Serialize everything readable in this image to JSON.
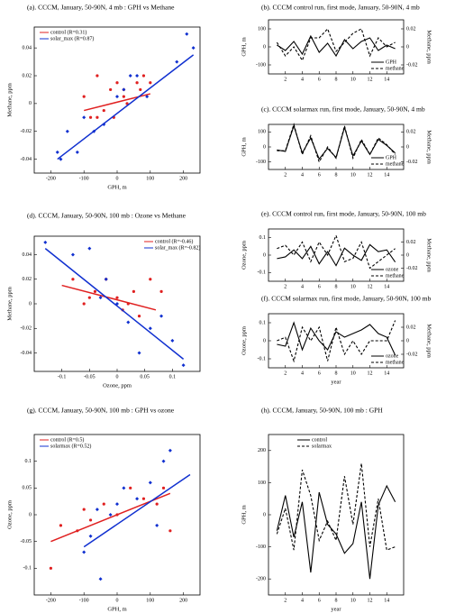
{
  "chart_data": [
    {
      "type": "scatter",
      "title": "(a). CCCM, January, 50-90N, 4 mb : GPH vs Methane",
      "xlabel": "GPH, m",
      "ylabel": "Methane, ppm",
      "xlim": [
        -250,
        250
      ],
      "xticks": [
        -200,
        -100,
        0,
        100,
        200
      ],
      "ylim": [
        -0.05,
        0.055
      ],
      "yticks": [
        -0.04,
        -0.02,
        0,
        0.02,
        0.04
      ],
      "legend": "upper left",
      "series": [
        {
          "name": "control (R=0.31)",
          "color": "#e02020",
          "marker": "circle",
          "x": [
            -60,
            -40,
            -20,
            0,
            -100,
            -80,
            20,
            60,
            70,
            100,
            -10,
            30,
            -60,
            20,
            80
          ],
          "values": [
            0.02,
            -0.005,
            0.01,
            0.015,
            0.005,
            -0.01,
            0.01,
            0.015,
            0.01,
            0.015,
            -0.01,
            0,
            -0.01,
            0.005,
            0.02
          ],
          "fit": {
            "x": [
              -100,
              100
            ],
            "y": [
              -0.005,
              0.007
            ]
          }
        },
        {
          "name": "solar_max (R=0.87)",
          "color": "#1030d0",
          "marker": "diamond",
          "x": [
            -180,
            -170,
            -150,
            -120,
            -100,
            -70,
            -40,
            0,
            20,
            60,
            90,
            180,
            210,
            230,
            40
          ],
          "values": [
            -0.035,
            -0.04,
            -0.02,
            -0.035,
            -0.01,
            -0.02,
            -0.015,
            0.005,
            0.01,
            0.02,
            0.005,
            0.03,
            0.05,
            0.04,
            0.02
          ],
          "fit": {
            "x": [
              -180,
              230
            ],
            "y": [
              -0.04,
              0.035
            ]
          }
        }
      ]
    },
    {
      "type": "line",
      "title": "(b). CCCM control run, first mode, January, 50-90N, 4 mb",
      "ylabel": "GPH, m",
      "y2label": "Methane, ppm",
      "x": [
        1,
        2,
        3,
        4,
        5,
        6,
        7,
        8,
        9,
        10,
        11,
        12,
        13,
        14,
        15
      ],
      "xlim": [
        0,
        16
      ],
      "xticks": [
        2,
        4,
        6,
        8,
        10,
        12,
        14
      ],
      "ylim": [
        -150,
        150
      ],
      "yticks": [
        -100,
        0,
        100
      ],
      "y2lim": [
        -0.03,
        0.03
      ],
      "y2ticks": [
        -0.02,
        0,
        0.02
      ],
      "legend": "lower right",
      "series": [
        {
          "name": "GPH",
          "color": "#000000",
          "linestyle": "solid",
          "values": [
            10,
            -20,
            30,
            -40,
            60,
            -30,
            20,
            -50,
            40,
            -10,
            30,
            50,
            -20,
            10,
            -10
          ]
        },
        {
          "name": "methane",
          "color": "#000000",
          "linestyle": "dashed",
          "axis": "y2",
          "values": [
            0.005,
            -0.01,
            0,
            -0.015,
            0.01,
            0.01,
            0.02,
            -0.005,
            0.005,
            0.015,
            0.02,
            -0.01,
            0.01,
            0,
            0.005
          ]
        }
      ]
    },
    {
      "type": "line",
      "title": "(c). CCCM solarmax run, first mode, January, 50-90N, 4 mb",
      "ylabel": "GPH, m",
      "y2label": "Methane, ppm",
      "x": [
        1,
        2,
        3,
        4,
        5,
        6,
        7,
        8,
        9,
        10,
        11,
        12,
        13,
        14,
        15
      ],
      "xlim": [
        0,
        16
      ],
      "xticks": [
        2,
        4,
        6,
        8,
        10,
        12,
        14
      ],
      "ylim": [
        -150,
        150
      ],
      "yticks": [
        -100,
        0,
        100
      ],
      "y2lim": [
        -0.03,
        0.03
      ],
      "y2ticks": [
        -0.02,
        0,
        0.02
      ],
      "legend": "lower right",
      "series": [
        {
          "name": "GPH",
          "color": "#000000",
          "linestyle": "solid",
          "values": [
            -20,
            -30,
            140,
            -40,
            60,
            -80,
            -10,
            -70,
            130,
            -60,
            40,
            -50,
            50,
            10,
            -40
          ]
        },
        {
          "name": "methane",
          "color": "#000000",
          "linestyle": "dashed",
          "axis": "y2",
          "values": [
            -0.005,
            -0.005,
            0.03,
            -0.01,
            0.015,
            -0.02,
            0,
            -0.015,
            0.028,
            -0.015,
            0.01,
            -0.01,
            0.012,
            0.003,
            -0.01
          ]
        }
      ]
    },
    {
      "type": "scatter",
      "title": "(d). CCCM, January, 50-90N, 100 mb : Ozone vs Methane",
      "xlabel": "Ozone, ppm",
      "ylabel": "Methane, ppm",
      "xlim": [
        -0.15,
        0.15
      ],
      "xticks": [
        -0.1,
        -0.05,
        0,
        0.05,
        0.1
      ],
      "ylim": [
        -0.055,
        0.055
      ],
      "yticks": [
        -0.04,
        -0.02,
        0,
        0.02,
        0.04
      ],
      "legend": "upper right",
      "series": [
        {
          "name": "control (R=-0.46)",
          "color": "#e02020",
          "marker": "circle",
          "x": [
            -0.08,
            -0.06,
            -0.04,
            -0.02,
            0,
            0.02,
            0.04,
            0.06,
            0.08,
            -0.05,
            0.01,
            0.03
          ],
          "values": [
            0.02,
            0,
            0.01,
            0.02,
            0.005,
            0,
            -0.01,
            0.02,
            0.01,
            0.005,
            -0.005,
            0.01
          ],
          "fit": {
            "x": [
              -0.1,
              0.07
            ],
            "y": [
              0.015,
              -0.005
            ]
          }
        },
        {
          "name": "solar_max (R=-0.82)",
          "color": "#1030d0",
          "marker": "diamond",
          "x": [
            -0.13,
            -0.08,
            -0.05,
            -0.02,
            0,
            0.02,
            0.04,
            0.06,
            0.1,
            0.12,
            0.08,
            -0.03
          ],
          "values": [
            0.05,
            0.04,
            0.045,
            0.02,
            0,
            -0.015,
            -0.04,
            -0.02,
            -0.03,
            -0.05,
            -0.01,
            0.005
          ],
          "fit": {
            "x": [
              -0.13,
              0.12
            ],
            "y": [
              0.045,
              -0.045
            ]
          }
        }
      ]
    },
    {
      "type": "line",
      "title": "(e). CCCM control run, first mode, January, 50-90N, 100 mb",
      "ylabel": "Ozone, ppm",
      "y2label": "Methane, ppm",
      "x": [
        1,
        2,
        3,
        4,
        5,
        6,
        7,
        8,
        9,
        10,
        11,
        12,
        13,
        14,
        15
      ],
      "xlim": [
        0,
        16
      ],
      "xticks": [
        2,
        4,
        6,
        8,
        10,
        12,
        14
      ],
      "ylim": [
        -0.15,
        0.15
      ],
      "yticks": [
        -0.1,
        0,
        0.1
      ],
      "y2lim": [
        -0.04,
        0.04
      ],
      "y2ticks": [
        -0.02,
        0,
        0.02
      ],
      "legend": "lower right",
      "series": [
        {
          "name": "ozone",
          "color": "#000000",
          "linestyle": "solid",
          "values": [
            -0.02,
            -0.01,
            0.03,
            -0.02,
            0.05,
            -0.05,
            0.02,
            -0.06,
            0.04,
            0,
            -0.03,
            0.06,
            0.02,
            0.03,
            -0.04
          ]
        },
        {
          "name": "methane",
          "color": "#000000",
          "linestyle": "dashed",
          "axis": "y2",
          "values": [
            0.01,
            0.015,
            0,
            0.02,
            -0.01,
            0.02,
            0,
            0.03,
            -0.01,
            -0.005,
            0.02,
            -0.02,
            -0.01,
            0,
            0.01
          ]
        }
      ]
    },
    {
      "type": "line",
      "title": "(f). CCCM solarmax run, first mode, January, 50-90N, 100 mb",
      "xlabel": "year",
      "ylabel": "Ozone, ppm",
      "y2label": "Methane, ppm",
      "x": [
        1,
        2,
        3,
        4,
        5,
        6,
        7,
        8,
        9,
        10,
        11,
        12,
        13,
        14,
        15
      ],
      "xlim": [
        0,
        16
      ],
      "xticks": [
        2,
        4,
        6,
        8,
        10,
        12,
        14
      ],
      "ylim": [
        -0.15,
        0.15
      ],
      "yticks": [
        -0.1,
        0,
        0.1
      ],
      "y2lim": [
        -0.04,
        0.04
      ],
      "y2ticks": [
        -0.02,
        0,
        0.02
      ],
      "legend": "lower right",
      "series": [
        {
          "name": "ozone",
          "color": "#000000",
          "linestyle": "solid",
          "values": [
            -0.02,
            -0.03,
            0.1,
            -0.05,
            0.07,
            0,
            -0.05,
            0.05,
            0.02,
            0.04,
            0.06,
            0.09,
            0.04,
            0.02,
            -0.08
          ]
        },
        {
          "name": "methane",
          "color": "#000000",
          "linestyle": "dashed",
          "axis": "y2",
          "values": [
            0,
            0.005,
            -0.03,
            0.02,
            0,
            0.02,
            -0.03,
            0.02,
            -0.02,
            0,
            -0.02,
            0,
            0,
            0,
            0.03
          ]
        }
      ]
    },
    {
      "type": "scatter",
      "title": "(g). CCCM, January, 50-90N, 100 mb : GPH vs ozone",
      "xlabel": "GPH, m",
      "ylabel": "Ozone, ppm",
      "xlim": [
        -250,
        250
      ],
      "xticks": [
        -200,
        -100,
        0,
        100,
        200
      ],
      "ylim": [
        -0.15,
        0.15
      ],
      "yticks": [
        -0.1,
        -0.05,
        0,
        0.05,
        0.1
      ],
      "legend": "upper left",
      "series": [
        {
          "name": "control (R=0.5)",
          "color": "#e02020",
          "marker": "circle",
          "x": [
            -200,
            -170,
            -120,
            -80,
            -40,
            0,
            40,
            80,
            120,
            160,
            140,
            -100
          ],
          "values": [
            -0.1,
            -0.02,
            -0.03,
            -0.01,
            0.02,
            0,
            0.05,
            0.03,
            0.02,
            -0.03,
            0.05,
            0.01
          ],
          "fit": {
            "x": [
              -200,
              160
            ],
            "y": [
              -0.05,
              0.04
            ]
          }
        },
        {
          "name": "solarmax (R=0.52)",
          "color": "#1030d0",
          "marker": "diamond",
          "x": [
            -100,
            -80,
            -50,
            -20,
            0,
            20,
            60,
            100,
            140,
            160,
            120,
            -60
          ],
          "values": [
            -0.07,
            -0.04,
            -0.12,
            0,
            0.02,
            0.05,
            0.03,
            0.06,
            0.1,
            0.12,
            -0.02,
            0.01
          ],
          "fit": {
            "x": [
              -100,
              220
            ],
            "y": [
              -0.06,
              0.075
            ]
          }
        }
      ]
    },
    {
      "type": "line",
      "title": "(h). CCCM, January, 50-90N, 100 mb : GPH",
      "xlabel": "year",
      "ylabel": "GPH, m",
      "x": [
        1,
        2,
        3,
        4,
        5,
        6,
        7,
        8,
        9,
        10,
        11,
        12,
        13,
        14,
        15
      ],
      "xlim": [
        0,
        16
      ],
      "xticks": [
        2,
        4,
        6,
        8,
        10,
        12,
        14
      ],
      "ylim": [
        -250,
        250
      ],
      "yticks": [
        -200,
        -100,
        0,
        100,
        200
      ],
      "legend": "upper left",
      "series": [
        {
          "name": "control",
          "color": "#000000",
          "linestyle": "solid",
          "values": [
            -50,
            60,
            -70,
            40,
            -180,
            70,
            -30,
            -60,
            -120,
            -90,
            40,
            -200,
            30,
            90,
            40
          ]
        },
        {
          "name": "solarmax",
          "color": "#000000",
          "linestyle": "dashed",
          "values": [
            -60,
            20,
            -110,
            140,
            60,
            -80,
            -20,
            -80,
            120,
            -30,
            160,
            -100,
            50,
            -110,
            -100
          ]
        }
      ]
    }
  ]
}
